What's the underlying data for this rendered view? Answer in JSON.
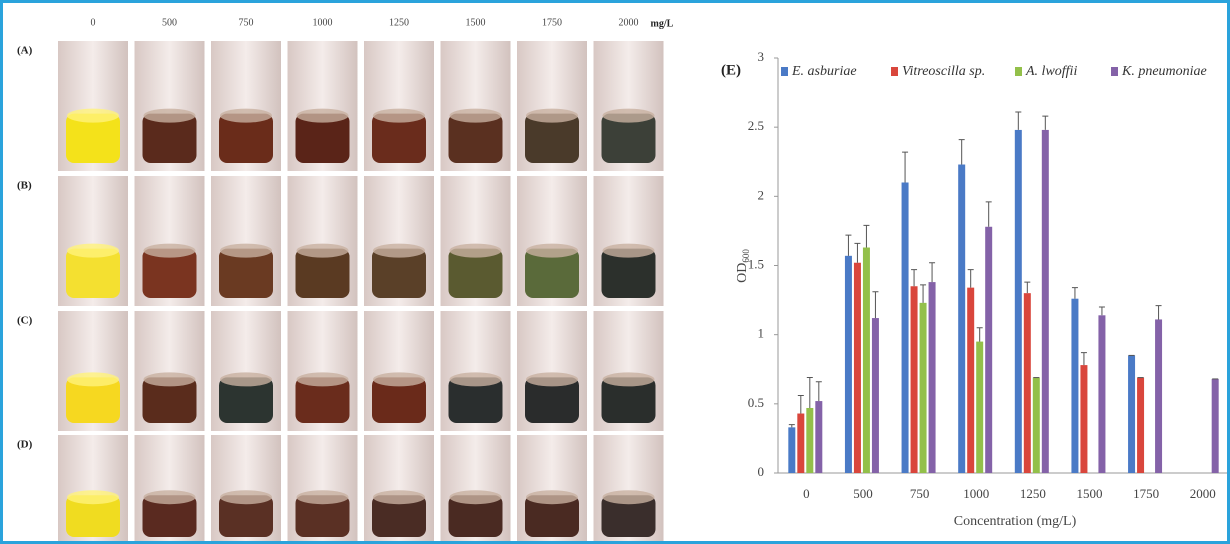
{
  "photo_panel": {
    "column_labels": [
      "0",
      "500",
      "750",
      "1000",
      "1250",
      "1500",
      "1750",
      "2000"
    ],
    "unit": "mg/L",
    "row_labels": [
      "(A)",
      "(B)",
      "(C)",
      "(D)"
    ]
  },
  "chart_data": {
    "type": "bar",
    "panel_label": "(E)",
    "x_label": "Concentration  (mg/L)",
    "y_label": "OD",
    "y_label_subscript": "600",
    "categories": [
      "0",
      "500",
      "750",
      "1000",
      "1250",
      "1500",
      "1750",
      "2000"
    ],
    "series": [
      {
        "name": "E. asburiae",
        "color": "#4a7ac6",
        "values": [
          0.33,
          1.57,
          2.1,
          2.23,
          2.48,
          1.26,
          0.85,
          null
        ],
        "errors": [
          0.02,
          0.15,
          0.22,
          0.18,
          0.13,
          0.08,
          0,
          null
        ]
      },
      {
        "name": "Vitreoscilla sp.",
        "color": "#d9463c",
        "values": [
          0.43,
          1.52,
          1.35,
          1.34,
          1.3,
          0.78,
          0.69,
          null
        ],
        "errors": [
          0.13,
          0.14,
          0.12,
          0.13,
          0.08,
          0.09,
          0,
          null
        ]
      },
      {
        "name": "A. lwoffii",
        "color": "#93c04a",
        "values": [
          0.47,
          1.63,
          1.23,
          0.95,
          0.69,
          null,
          null,
          null
        ],
        "errors": [
          0.22,
          0.16,
          0.13,
          0.1,
          0,
          null,
          null,
          null
        ]
      },
      {
        "name": "K. pneumoniae",
        "color": "#8462a8",
        "values": [
          0.52,
          1.12,
          1.38,
          1.78,
          2.48,
          1.14,
          1.11,
          0.68
        ],
        "errors": [
          0.14,
          0.19,
          0.14,
          0.18,
          0.1,
          0.06,
          0.1,
          0
        ]
      }
    ],
    "ylim": [
      0,
      3
    ],
    "yticks": [
      0,
      0.5,
      1,
      1.5,
      2,
      2.5,
      3
    ],
    "grid": false
  }
}
